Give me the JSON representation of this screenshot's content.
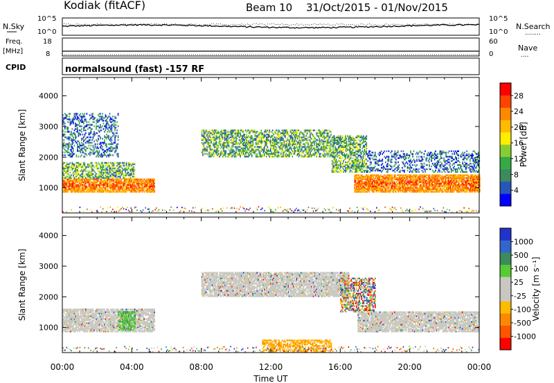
{
  "header": {
    "title": "Kodiak (fitACF)",
    "beam": "Beam 10",
    "date_range": "31/Oct/2015 - 01/Nov/2015"
  },
  "noise_panel": {
    "left_label": "N.Sky",
    "right_label": "N.Search",
    "right_legend_line": "........",
    "left_ticks": [
      "10^5",
      "10^0"
    ],
    "right_ticks": [
      "10^5",
      "10^0"
    ]
  },
  "freq_panel": {
    "left_label_top": "Freq.",
    "left_label_bottom": "[MHz]",
    "right_label": "Nave",
    "right_legend_line": "....",
    "left_ticks": [
      "18",
      "8"
    ],
    "right_ticks": [
      "60",
      "0"
    ]
  },
  "cpid": {
    "label": "CPID",
    "text": "normalsound (fast) -157 RF"
  },
  "time_axis": {
    "label": "Time UT",
    "ticks": [
      "00:00",
      "04:00",
      "08:00",
      "12:00",
      "16:00",
      "20:00",
      "00:00"
    ]
  },
  "chart_data": [
    {
      "type": "heatmap",
      "name": "power",
      "ylabel": "Slant Range [km]",
      "ylim": [
        180,
        4600
      ],
      "yticks": [
        1000,
        2000,
        3000,
        4000
      ],
      "xlim_hours": [
        0,
        24
      ],
      "colorbar": {
        "label": "Power [dB]",
        "ticks": [
          "4",
          "8",
          "12",
          "16",
          "20",
          "24",
          "28"
        ],
        "colors": [
          "#0000ff",
          "#2a55b8",
          "#3d8a5e",
          "#33aa44",
          "#88cc33",
          "#ffee00",
          "#ffbb00",
          "#ff8800",
          "#ff4400",
          "#ff0000"
        ]
      },
      "echo_regions": [
        {
          "t0": 0.0,
          "t1": 5.3,
          "r0": 850,
          "r1": 1300,
          "level": "high"
        },
        {
          "t0": 0.0,
          "t1": 4.2,
          "r0": 1300,
          "r1": 1800,
          "level": "medium"
        },
        {
          "t0": 0.0,
          "t1": 3.2,
          "r0": 2000,
          "r1": 3400,
          "level": "low"
        },
        {
          "t0": 8.0,
          "t1": 15.5,
          "r0": 2000,
          "r1": 2900,
          "level": "medium"
        },
        {
          "t0": 15.5,
          "t1": 17.5,
          "r0": 1500,
          "r1": 2700,
          "level": "medium"
        },
        {
          "t0": 16.8,
          "t1": 24.0,
          "r0": 850,
          "r1": 1400,
          "level": "high"
        },
        {
          "t0": 17.5,
          "t1": 24.0,
          "r0": 1500,
          "r1": 2200,
          "level": "low"
        }
      ]
    },
    {
      "type": "heatmap",
      "name": "velocity",
      "ylabel": "Slant Range [km]",
      "ylim": [
        180,
        4600
      ],
      "yticks": [
        1000,
        2000,
        3000,
        4000
      ],
      "xlim_hours": [
        0,
        24
      ],
      "colorbar": {
        "label": "Velocity [m s⁻¹]",
        "ticks": [
          "1000",
          "500",
          "100",
          "25",
          "-25",
          "-100",
          "-500",
          "-1000"
        ],
        "colors": [
          "#2233cc",
          "#3366cc",
          "#3d8a5e",
          "#55cc33",
          "#c8c8c0",
          "#c8c8c0",
          "#ffbb00",
          "#ff8800",
          "#ff5500",
          "#ff0000"
        ]
      },
      "echo_regions": [
        {
          "t0": 0.0,
          "t1": 5.3,
          "r0": 850,
          "r1": 1600,
          "level": "ground"
        },
        {
          "t0": 3.2,
          "t1": 4.2,
          "r0": 900,
          "r1": 1500,
          "level": "positive"
        },
        {
          "t0": 8.0,
          "t1": 16.5,
          "r0": 2000,
          "r1": 2800,
          "level": "ground"
        },
        {
          "t0": 16.0,
          "t1": 18.0,
          "r0": 1500,
          "r1": 2600,
          "level": "mixed"
        },
        {
          "t0": 17.0,
          "t1": 24.0,
          "r0": 850,
          "r1": 1500,
          "level": "ground"
        },
        {
          "t0": 11.5,
          "t1": 15.5,
          "r0": 200,
          "r1": 600,
          "level": "negative"
        }
      ]
    }
  ]
}
